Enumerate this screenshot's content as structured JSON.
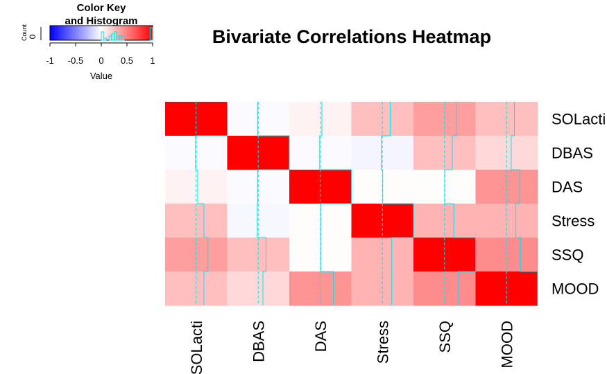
{
  "chart_data": {
    "type": "heatmap",
    "title": "Bivariate Correlations Heatmap",
    "row_labels": [
      "SOLacti",
      "DBAS",
      "DAS",
      "Stress",
      "SSQ",
      "MOOD"
    ],
    "col_labels": [
      "SOLacti",
      "DBAS",
      "DAS",
      "Stress",
      "SSQ",
      "MOOD"
    ],
    "values": [
      [
        1.0,
        -0.02,
        0.05,
        0.25,
        0.38,
        0.25
      ],
      [
        -0.02,
        1.0,
        -0.02,
        -0.04,
        0.25,
        0.15
      ],
      [
        0.05,
        -0.02,
        1.0,
        0.01,
        0.01,
        0.42
      ],
      [
        0.25,
        -0.03,
        0.01,
        1.0,
        0.3,
        0.3
      ],
      [
        0.38,
        0.25,
        0.01,
        0.3,
        1.0,
        0.45
      ],
      [
        0.25,
        0.15,
        0.42,
        0.3,
        0.45,
        1.0
      ]
    ],
    "color_scale": {
      "min": -1,
      "mid": 0,
      "max": 1,
      "low_color": "#0000ff",
      "mid_color": "#ffffff",
      "high_color": "#ff0000"
    },
    "trace_color": "#00e5ee",
    "color_key": {
      "title_line1": "Color Key",
      "title_line2": "and Histogram",
      "xlabel": "Value",
      "ylabel": "Count",
      "ytick": "0",
      "ticks": [
        -1,
        -0.5,
        0,
        0.5,
        1
      ],
      "tick_labels": [
        "-1",
        "-0.5",
        "0",
        "0.5",
        "1"
      ],
      "histogram_bins": [
        {
          "from": 0.0,
          "to": 0.05,
          "count": 4
        },
        {
          "from": 0.05,
          "to": 0.1,
          "count": 1
        },
        {
          "from": 0.15,
          "to": 0.2,
          "count": 2
        },
        {
          "from": 0.2,
          "to": 0.25,
          "count": 3
        },
        {
          "from": 0.25,
          "to": 0.3,
          "count": 4
        },
        {
          "from": 0.3,
          "to": 0.35,
          "count": 2
        },
        {
          "from": 0.35,
          "to": 0.4,
          "count": 2
        },
        {
          "from": 0.4,
          "to": 0.45,
          "count": 2
        },
        {
          "from": 0.95,
          "to": 1.0,
          "count": 6
        }
      ]
    }
  }
}
